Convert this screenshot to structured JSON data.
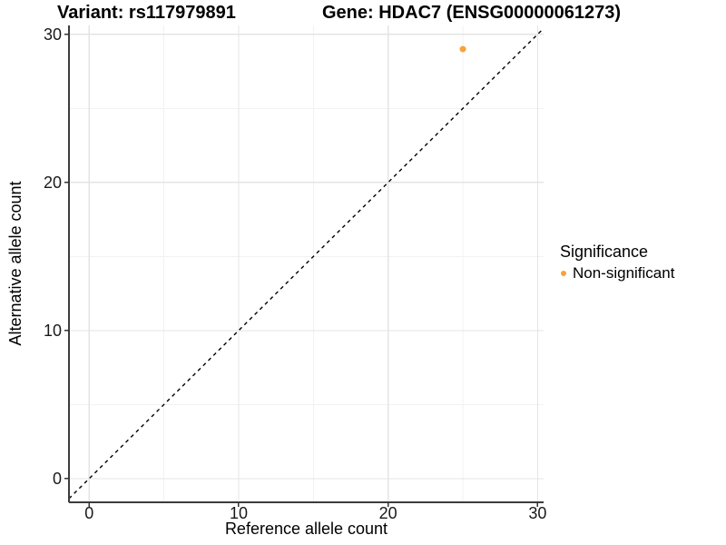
{
  "chart_data": {
    "type": "scatter",
    "titles": {
      "left": "Variant: rs117979891",
      "right": "Gene: HDAC7 (ENSG00000061273)"
    },
    "xlabel": "Reference allele count",
    "ylabel": "Alternative allele count",
    "xlim": [
      -1.35,
      30.4
    ],
    "ylim": [
      -1.6,
      30.6
    ],
    "x_ticks": [
      0,
      10,
      20,
      30
    ],
    "y_ticks": [
      0,
      10,
      20,
      30
    ],
    "x_minor_gridlines": [
      5,
      15,
      25
    ],
    "y_minor_gridlines": [
      5,
      15,
      25
    ],
    "grid": "major-and-minor",
    "identity_line": {
      "equation": "y = x",
      "style": "dashed",
      "color": "#000000"
    },
    "series": [
      {
        "name": "Non-significant",
        "color": "#F9A13A",
        "points": [
          {
            "x": 25,
            "y": 29
          }
        ]
      }
    ],
    "legend": {
      "title": "Significance",
      "position": "right",
      "items": [
        {
          "label": "Non-significant",
          "color": "#F9A13A"
        }
      ]
    }
  },
  "colors": {
    "background": "#FFFFFF",
    "grid_major": "#E4E4E4",
    "grid_minor": "#F2F2F2",
    "axis_line": "#3C3C3C",
    "tick_mark": "#333333",
    "tick_text": "#1A1A1A"
  }
}
